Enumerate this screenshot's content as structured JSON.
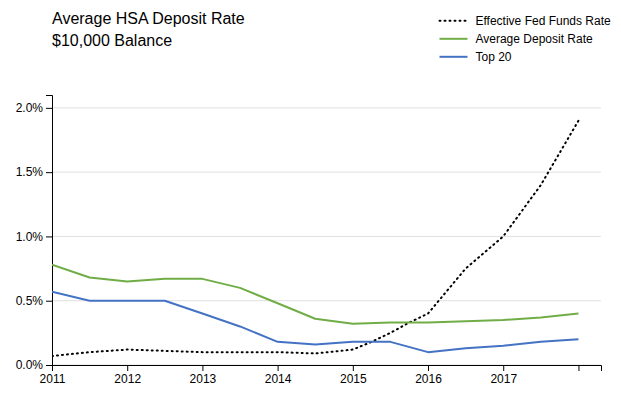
{
  "chart_data": {
    "type": "line",
    "title": "Average HSA Deposit Rate",
    "subtitle": "$10,000 Balance",
    "series": [
      {
        "name": "Effective Fed Funds Rate",
        "color": "#000000",
        "line_style": "dotted",
        "x": [
          2011,
          2011.5,
          2012,
          2012.5,
          2013,
          2013.5,
          2014,
          2014.5,
          2015,
          2015.25,
          2015.5,
          2015.75,
          2016,
          2016.5,
          2017,
          2017.5,
          2018
        ],
        "values": [
          0.0007,
          0.001,
          0.0012,
          0.0011,
          0.001,
          0.001,
          0.001,
          0.0009,
          0.0012,
          0.0018,
          0.0025,
          0.0033,
          0.004,
          0.0075,
          0.01,
          0.014,
          0.019
        ]
      },
      {
        "name": "Average Deposit Rate",
        "color": "#70ad47",
        "line_style": "solid",
        "x": [
          2011,
          2011.5,
          2012,
          2012.5,
          2013,
          2013.5,
          2014,
          2014.5,
          2015,
          2015.5,
          2016,
          2016.5,
          2017,
          2017.5,
          2018
        ],
        "values": [
          0.0078,
          0.0068,
          0.0065,
          0.0067,
          0.0067,
          0.006,
          0.0048,
          0.0036,
          0.0032,
          0.0033,
          0.0033,
          0.0034,
          0.0035,
          0.0037,
          0.004
        ]
      },
      {
        "name": "Top 20",
        "color": "#4472c4",
        "line_style": "solid",
        "x": [
          2011,
          2011.5,
          2012,
          2012.5,
          2013,
          2013.5,
          2014,
          2014.5,
          2015,
          2015.5,
          2016,
          2016.5,
          2017,
          2017.5,
          2018
        ],
        "values": [
          0.0057,
          0.005,
          0.005,
          0.005,
          0.004,
          0.003,
          0.0018,
          0.0016,
          0.0018,
          0.0018,
          0.001,
          0.0013,
          0.0015,
          0.0018,
          0.002
        ]
      }
    ],
    "xlim": [
      2011,
      2018.3
    ],
    "xticks": [
      2011,
      2012,
      2013,
      2014,
      2015,
      2016,
      2017,
      {
        "value": 2018,
        "label": null
      }
    ],
    "ylim": [
      0,
      0.021
    ],
    "yticks": [
      {
        "value": 0.0,
        "label": "0.0%"
      },
      {
        "value": 0.005,
        "label": "0.5%"
      },
      {
        "value": 0.01,
        "label": "1.0%"
      },
      {
        "value": 0.015,
        "label": "1.5%"
      },
      {
        "value": 0.02,
        "label": "2.0%"
      }
    ],
    "grid": "y",
    "legend": "top-right"
  }
}
